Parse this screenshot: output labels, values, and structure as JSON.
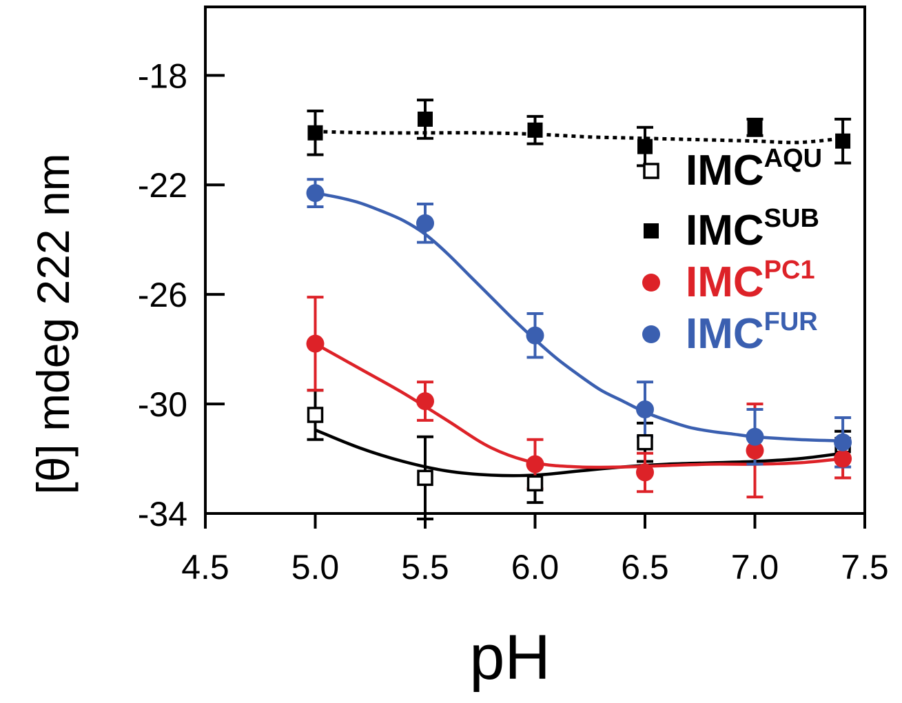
{
  "chart_data": {
    "type": "scatter",
    "xlabel": "pH",
    "ylabel": "[θ]  mdeg  222 nm",
    "xlim": [
      4.5,
      7.5
    ],
    "ylim": [
      -34,
      -15.5
    ],
    "xticks": [
      "4.5",
      "5.0",
      "5.5",
      "6.0",
      "6.5",
      "7.0",
      "7.5"
    ],
    "xtick_values": [
      4.5,
      5.0,
      5.5,
      6.0,
      6.5,
      7.0,
      7.5
    ],
    "yticks": [
      "-18",
      "-22",
      "-26",
      "-30",
      "-34"
    ],
    "ytick_values": [
      -18,
      -22,
      -26,
      -30,
      -34
    ],
    "legend_position": "right",
    "series": [
      {
        "name": "IMC",
        "superscript": "AQU",
        "color": "#000000",
        "marker": "open-square",
        "line": "solid",
        "x": [
          5.0,
          5.5,
          6.0,
          6.5,
          7.4
        ],
        "y": [
          -30.4,
          -32.7,
          -32.9,
          -31.4,
          -31.5
        ],
        "err": [
          0.9,
          1.5,
          0.7,
          0.7,
          0.5
        ],
        "fit_x": [
          5.0,
          5.2,
          5.4,
          5.6,
          5.8,
          6.0,
          6.2,
          6.4,
          6.6,
          6.8,
          7.0,
          7.2,
          7.4
        ],
        "fit_y": [
          -30.95,
          -31.6,
          -32.1,
          -32.45,
          -32.6,
          -32.6,
          -32.45,
          -32.3,
          -32.2,
          -32.15,
          -32.1,
          -32.0,
          -31.8
        ]
      },
      {
        "name": "IMC",
        "superscript": "SUB",
        "color": "#000000",
        "marker": "filled-square",
        "line": "dotted",
        "x": [
          5.0,
          5.5,
          6.0,
          6.5,
          7.0,
          7.4
        ],
        "y": [
          -20.1,
          -19.6,
          -20.0,
          -20.6,
          -19.9,
          -20.4
        ],
        "err": [
          0.8,
          0.7,
          0.5,
          0.7,
          0.3,
          0.8
        ],
        "fit_x": [
          5.0,
          5.25,
          5.5,
          5.75,
          6.0,
          6.25,
          6.5,
          6.75,
          7.0,
          7.2,
          7.4
        ],
        "fit_y": [
          -20.05,
          -20.1,
          -20.1,
          -20.1,
          -20.15,
          -20.25,
          -20.3,
          -20.35,
          -20.4,
          -20.45,
          -20.3
        ]
      },
      {
        "name": "IMC",
        "superscript": "PC1",
        "color": "#dd2228",
        "marker": "filled-circle",
        "line": "solid",
        "x": [
          5.0,
          5.5,
          6.0,
          6.5,
          7.0,
          7.4
        ],
        "y": [
          -27.8,
          -29.9,
          -32.2,
          -32.5,
          -31.7,
          -32.0
        ],
        "err": [
          1.7,
          0.7,
          0.9,
          0.7,
          1.7,
          0.7
        ],
        "fit_x": [
          5.0,
          5.2,
          5.4,
          5.6,
          5.8,
          6.0,
          6.2,
          6.4,
          6.6,
          6.8,
          7.0,
          7.2,
          7.4
        ],
        "fit_y": [
          -27.8,
          -28.7,
          -29.6,
          -30.6,
          -31.6,
          -32.15,
          -32.3,
          -32.3,
          -32.25,
          -32.2,
          -32.2,
          -32.15,
          -32.0
        ]
      },
      {
        "name": "IMC",
        "superscript": "FUR",
        "color": "#3a5fb0",
        "marker": "filled-circle",
        "line": "solid",
        "x": [
          5.0,
          5.5,
          6.0,
          6.5,
          7.0,
          7.4
        ],
        "y": [
          -22.3,
          -23.4,
          -27.5,
          -30.2,
          -31.2,
          -31.4
        ],
        "err": [
          0.5,
          0.7,
          0.8,
          1.0,
          1.0,
          0.9
        ],
        "fit_x": [
          5.0,
          5.1,
          5.2,
          5.3,
          5.4,
          5.5,
          5.6,
          5.7,
          5.8,
          5.9,
          6.0,
          6.1,
          6.2,
          6.3,
          6.4,
          6.5,
          6.6,
          6.7,
          6.8,
          6.9,
          7.0,
          7.2,
          7.4
        ],
        "fit_y": [
          -22.3,
          -22.45,
          -22.65,
          -22.95,
          -23.3,
          -23.8,
          -24.5,
          -25.3,
          -26.1,
          -26.9,
          -27.65,
          -28.35,
          -28.95,
          -29.5,
          -29.9,
          -30.3,
          -30.6,
          -30.85,
          -31.0,
          -31.1,
          -31.2,
          -31.3,
          -31.35
        ]
      }
    ]
  }
}
